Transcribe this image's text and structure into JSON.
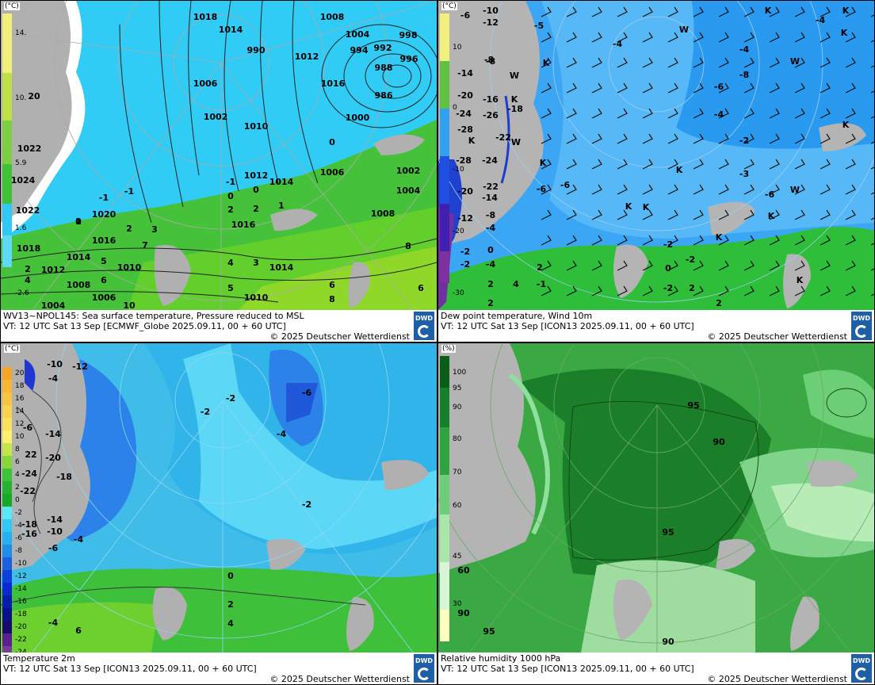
{
  "panels": [
    {
      "id": "sst-msl",
      "caption_line1": "WV13~NPOL145: Sea surface temperature,  Pressure reduced to MSL",
      "caption_line2": "VT: 12 UTC Sat  13 Sep [ECMWF_Globe 2025.09.11, 00 + 60 UTC]",
      "copyright": "© 2025 Deutscher Wetterdienst",
      "legend_unit": "(°C)",
      "legend_ticks": [
        "14.",
        "10.",
        "5.9",
        "1.6",
        "-2.6"
      ],
      "pressure_labels": [
        "1018",
        "1014",
        "1008",
        "1004",
        "998",
        "994",
        "992",
        "996",
        "988",
        "986",
        "990",
        "1012",
        "1006",
        "1016",
        "1002",
        "1000",
        "1014",
        "1010",
        "1022",
        "1024",
        "1022",
        "1020",
        "1016",
        "1018",
        "1014",
        "1012",
        "1010",
        "1008",
        "1006",
        "1004",
        "1016",
        "1006",
        "1002",
        "1004",
        "1008",
        "1014",
        "1010",
        "1012"
      ],
      "temp_labels": [
        "20",
        "-1",
        "0",
        "-1",
        "0",
        "2",
        "2",
        "1",
        "2",
        "3",
        "7",
        "5",
        "6",
        "4",
        "3",
        "5",
        "6",
        "8",
        "6",
        "10",
        "8",
        "0",
        "1",
        "4",
        "2",
        "-1",
        "0"
      ]
    },
    {
      "id": "dewpoint-wind",
      "caption_line1": "Dew point temperature, Wind 10m",
      "caption_line2": "VT: 12 UTC Sat  13 Sep [ICON13 2025.09.11,  00 + 60 UTC]",
      "copyright": "© 2025 Deutscher Wetterdienst",
      "legend_unit": "(°C)",
      "legend_ticks": [
        "10",
        "0",
        "-10",
        "-20",
        "-30"
      ],
      "temp_labels": [
        "-10",
        "-12",
        "-8",
        "-5",
        "-6",
        "-8",
        "-14",
        "-20",
        "-16",
        "-18",
        "-24",
        "-26",
        "-28",
        "-22",
        "-24",
        "-28",
        "-20",
        "-22",
        "-14",
        "-8",
        "-12",
        "-4",
        "-2",
        "0",
        "-2",
        "-4",
        "-6",
        "-2",
        "-2",
        "0",
        "2",
        "-2",
        "2",
        "-6",
        "-4",
        "-4",
        "-8",
        "-6",
        "-4",
        "-2",
        "-3",
        "-6",
        "-4",
        "-1",
        "4",
        "2",
        "2",
        "2"
      ],
      "pressure_centers": [
        "W",
        "K",
        "K",
        "W",
        "K",
        "K",
        "K",
        "K",
        "K",
        "W",
        "W",
        "K",
        "K",
        "W",
        "K",
        "K",
        "K",
        "K",
        "K"
      ]
    },
    {
      "id": "t2m",
      "caption_line1": "Temperature 2m",
      "caption_line2": "VT: 12 UTC Sat  13 Sep [ICON13 2025.09.11, 00 + 60 UTC]",
      "copyright": "© 2025 Deutscher Wetterdienst",
      "legend_unit": "(°C)",
      "legend_ticks": [
        "20",
        "18",
        "16",
        "14",
        "12",
        "10",
        "8",
        "6",
        "4",
        "2",
        "0",
        "-2",
        "-4",
        "-6",
        "-8",
        "-10",
        "-12",
        "-14",
        "-16",
        "-18",
        "-20",
        "-22",
        "-24"
      ],
      "temp_labels": [
        "-10",
        "-12",
        "-4",
        "-6",
        "-14",
        "-20",
        "22",
        "-24",
        "-18",
        "-22",
        "-14",
        "-10",
        "-18",
        "-16",
        "-6",
        "-4",
        "-2",
        "-2",
        "-6",
        "-4",
        "-2",
        "0",
        "2",
        "4",
        "6",
        "-4"
      ]
    },
    {
      "id": "rh1000",
      "caption_line1": "Relative humidity 1000 hPa",
      "caption_line2": "VT: 12 UTC Sat  13 Sep [ICON13 2025.09.11, 00 + 60 UTC]",
      "copyright": "© 2025 Deutscher Wetterdienst",
      "legend_unit": "(%)",
      "legend_ticks": [
        "100",
        "95",
        "90",
        "80",
        "70",
        "60",
        "45",
        "30"
      ],
      "rh_labels": [
        "95",
        "90",
        "95",
        "60",
        "90",
        "95",
        "90"
      ]
    }
  ],
  "colors": {
    "sea_cyan": "#2ec9f5",
    "land_green": "#3fb82e",
    "land_grey": "#b0b0b0",
    "dew_blue": "#1f8cf0",
    "rh_dark": "#0b6e1a",
    "rh_light": "#a9e6a9"
  }
}
